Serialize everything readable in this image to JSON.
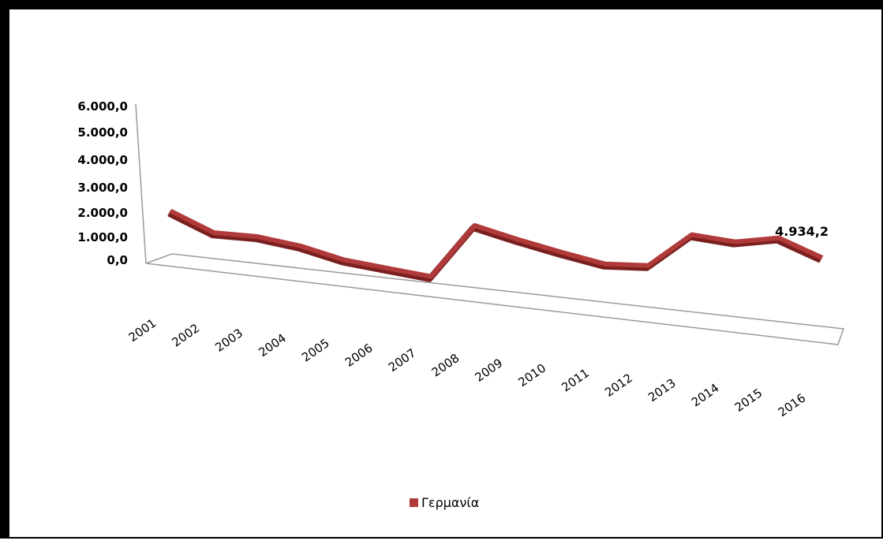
{
  "colors": {
    "series": "#b03a3a",
    "series_dark": "#7a1f1f",
    "axis": "#9a9a9a"
  },
  "chart_data": {
    "type": "line",
    "style": "3d",
    "x": [
      "2001",
      "2002",
      "2003",
      "2004",
      "2005",
      "2006",
      "2007",
      "2008",
      "2009",
      "2010",
      "2011",
      "2012",
      "2013",
      "2014",
      "2015",
      "2016"
    ],
    "y_tick_labels": [
      "0,0",
      "1.000,0",
      "2.000,0",
      "3.000,0",
      "4.000,0",
      "5.000,0",
      "6.000,0"
    ],
    "ylim": [
      0,
      6000
    ],
    "series": [
      {
        "name": "Γερμανία",
        "values": [
          2200,
          1550,
          1700,
          1600,
          1300,
          1250,
          1200,
          3800,
          3500,
          3250,
          3050,
          3300,
          5000,
          5000,
          5500,
          4934.2
        ]
      }
    ],
    "data_labels": [
      {
        "x": "2016",
        "text": "4.934,2"
      }
    ],
    "legend_position": "bottom",
    "grid": false
  }
}
